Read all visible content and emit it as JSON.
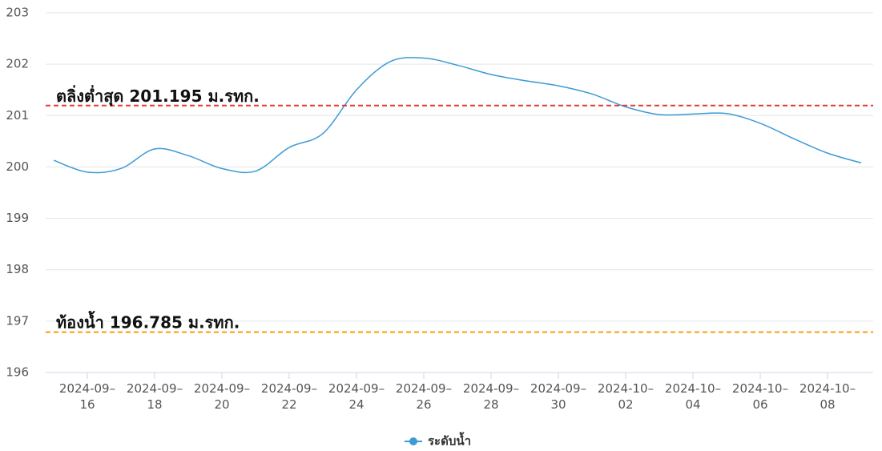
{
  "chart_data": {
    "type": "line",
    "x": [
      "2024-09-15",
      "2024-09-16",
      "2024-09-17",
      "2024-09-18",
      "2024-09-19",
      "2024-09-20",
      "2024-09-21",
      "2024-09-22",
      "2024-09-23",
      "2024-09-24",
      "2024-09-25",
      "2024-09-26",
      "2024-09-27",
      "2024-09-28",
      "2024-09-29",
      "2024-09-30",
      "2024-10-01",
      "2024-10-02",
      "2024-10-03",
      "2024-10-04",
      "2024-10-05",
      "2024-10-06",
      "2024-10-07",
      "2024-10-08",
      "2024-10-09"
    ],
    "series": [
      {
        "name": "ระดับน้ำ",
        "color": "#3d9ad6",
        "values": [
          200.13,
          199.9,
          199.97,
          200.35,
          200.22,
          199.97,
          199.92,
          200.38,
          200.65,
          201.5,
          202.05,
          202.12,
          201.98,
          201.8,
          201.68,
          201.58,
          201.42,
          201.17,
          201.02,
          201.03,
          201.04,
          200.85,
          200.55,
          200.27,
          200.08
        ]
      }
    ],
    "xlim": [
      "2024-09-15",
      "2024-10-09"
    ],
    "xticks": [
      {
        "value": "2024-09-16",
        "label": "2024-09– 16"
      },
      {
        "value": "2024-09-18",
        "label": "2024-09– 18"
      },
      {
        "value": "2024-09-20",
        "label": "2024-09– 20"
      },
      {
        "value": "2024-09-22",
        "label": "2024-09– 22"
      },
      {
        "value": "2024-09-24",
        "label": "2024-09– 24"
      },
      {
        "value": "2024-09-26",
        "label": "2024-09– 26"
      },
      {
        "value": "2024-09-28",
        "label": "2024-09– 28"
      },
      {
        "value": "2024-09-30",
        "label": "2024-09– 30"
      },
      {
        "value": "2024-10-02",
        "label": "2024-10– 02"
      },
      {
        "value": "2024-10-04",
        "label": "2024-10– 04"
      },
      {
        "value": "2024-10-06",
        "label": "2024-10– 06"
      },
      {
        "value": "2024-10-08",
        "label": "2024-10– 08"
      }
    ],
    "ylim": [
      196,
      203
    ],
    "yticks": [
      196,
      197,
      198,
      199,
      200,
      201,
      202,
      203
    ],
    "grid": true,
    "legend": "bottom",
    "reference_lines": [
      {
        "value": 201.195,
        "label": "ตลิ่งต่ำสุด 201.195 ม.รทก.",
        "color": "#e53935"
      },
      {
        "value": 196.785,
        "label": "ท้องน้ำ 196.785 ม.รทก.",
        "color": "#f5a000"
      }
    ]
  }
}
